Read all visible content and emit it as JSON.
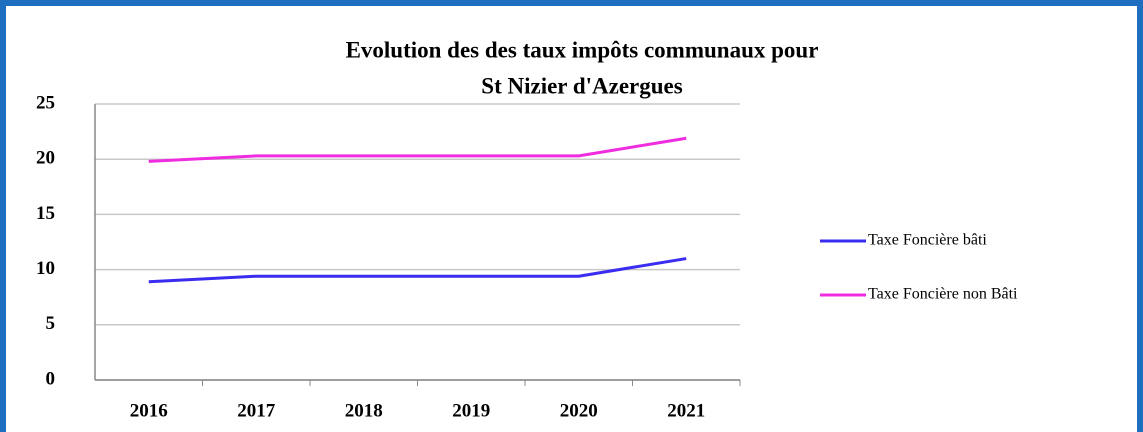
{
  "chart_data": {
    "type": "line",
    "title": [
      "Evolution des des taux impôts communaux pour",
      "St Nizier d'Azergues"
    ],
    "categories": [
      "2016",
      "2017",
      "2018",
      "2019",
      "2020",
      "2021"
    ],
    "series": [
      {
        "name": "Taxe Foncière bâti",
        "color": "#3a2cf0",
        "values": [
          8.9,
          9.4,
          9.4,
          9.4,
          9.4,
          11.0
        ]
      },
      {
        "name": "Taxe Foncière non Bâti",
        "color": "#f02ce0",
        "values": [
          19.8,
          20.3,
          20.3,
          20.3,
          20.3,
          21.9
        ]
      }
    ],
    "ylim": [
      0,
      25
    ],
    "yticks": [
      0,
      5,
      10,
      15,
      20,
      25
    ],
    "grid": true,
    "legend": "right"
  }
}
